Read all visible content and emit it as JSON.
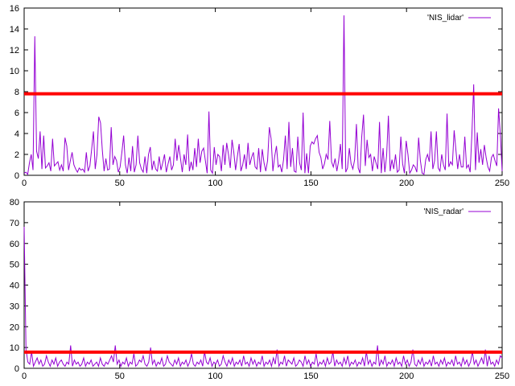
{
  "chart_data": [
    {
      "type": "line",
      "xlim": [
        0,
        250
      ],
      "ylim": [
        0,
        16
      ],
      "x_ticks": [
        "0",
        "50",
        "100",
        "150",
        "200",
        "250"
      ],
      "y_ticks": [
        "0",
        "2",
        "4",
        "6",
        "8",
        "10",
        "12",
        "14",
        "16"
      ],
      "legend_position": "top-right",
      "threshold": {
        "value": 7.8,
        "color": "#ff0000"
      },
      "series": [
        {
          "name": "'NIS_lidar'",
          "color": "#9400d3",
          "values": [
            0.2,
            0.3,
            0.1,
            1.2,
            2.0,
            0.5,
            13.3,
            2.3,
            1.6,
            4.2,
            0.6,
            3.8,
            0.7,
            0.9,
            1.2,
            0.4,
            3.5,
            0.9,
            1.1,
            1.3,
            0.5,
            1.0,
            0.4,
            3.6,
            2.8,
            0.5,
            1.4,
            2.2,
            1.0,
            0.6,
            0.3,
            0.7,
            0.5,
            0.6,
            0.3,
            2.2,
            0.4,
            0.9,
            2.5,
            4.2,
            0.6,
            2.0,
            5.6,
            5.0,
            2.4,
            0.4,
            1.6,
            0.5,
            0.6,
            4.6,
            1.0,
            1.8,
            1.4,
            0.3,
            0.8,
            2.2,
            3.8,
            1.0,
            0.2,
            1.7,
            0.4,
            2.8,
            0.3,
            1.0,
            3.8,
            1.2,
            0.6,
            0.3,
            1.8,
            0.2,
            2.0,
            2.7,
            0.5,
            1.4,
            0.6,
            0.4,
            1.8,
            0.5,
            1.2,
            2.0,
            0.3,
            1.1,
            1.8,
            0.5,
            1.0,
            3.5,
            1.4,
            2.9,
            1.6,
            0.3,
            2.0,
            1.0,
            3.9,
            0.4,
            1.3,
            0.5,
            2.6,
            0.8,
            3.5,
            1.2,
            2.3,
            2.6,
            1.4,
            0.2,
            6.1,
            0.5,
            0.2,
            2.7,
            1.0,
            2.0,
            1.8,
            0.4,
            2.9,
            1.0,
            3.1,
            2.0,
            0.7,
            3.4,
            2.2,
            0.5,
            1.8,
            3.0,
            0.4,
            1.0,
            2.0,
            0.6,
            3.1,
            1.0,
            1.7,
            2.2,
            0.8,
            0.6,
            2.6,
            0.3,
            2.5,
            1.2,
            0.4,
            1.4,
            4.6,
            3.5,
            0.4,
            1.8,
            2.8,
            0.8,
            1.0,
            0.3,
            1.5,
            3.8,
            0.6,
            5.1,
            0.8,
            2.6,
            0.4,
            0.3,
            3.7,
            1.2,
            0.5,
            6.0,
            0.2,
            2.1,
            0.2,
            2.8,
            3.2,
            3.0,
            3.5,
            3.8,
            2.2,
            1.7,
            0.6,
            1.1,
            2.0,
            1.5,
            5.2,
            1.3,
            0.8,
            1.6,
            0.4,
            1.4,
            3.0,
            0.6,
            15.3,
            0.3,
            0.7,
            2.6,
            1.1,
            0.6,
            1.5,
            4.9,
            0.7,
            0.2,
            3.7,
            5.8,
            0.9,
            3.4,
            1.7,
            2.0,
            0.4,
            1.8,
            1.2,
            0.6,
            5.1,
            0.2,
            2.6,
            0.3,
            1.9,
            5.7,
            0.4,
            1.5,
            0.6,
            2.0,
            0.3,
            0.5,
            3.7,
            1.1,
            0.2,
            3.3,
            2.0,
            0.2,
            0.5,
            1.0,
            0.8,
            0.3,
            3.6,
            1.4,
            0.2,
            0.1,
            1.5,
            2.0,
            1.3,
            4.2,
            0.6,
            1.4,
            4.2,
            0.7,
            0.4,
            2.0,
            1.0,
            0.5,
            5.9,
            0.8,
            1.3,
            1.0,
            4.3,
            2.4,
            0.6,
            2.0,
            0.8,
            0.8,
            3.7,
            0.7,
            1.0,
            0.3,
            4.0,
            8.7,
            0.5,
            4.1,
            1.2,
            2.5,
            1.0,
            2.9,
            1.7,
            0.8,
            0.4,
            1.7,
            2.0,
            1.4,
            0.9,
            6.4,
            3.9,
            0.4
          ]
        }
      ]
    },
    {
      "type": "line",
      "xlim": [
        0,
        250
      ],
      "ylim": [
        0,
        80
      ],
      "x_ticks": [
        "0",
        "50",
        "100",
        "150",
        "200",
        "250"
      ],
      "y_ticks": [
        "0",
        "10",
        "20",
        "30",
        "40",
        "50",
        "60",
        "70",
        "80"
      ],
      "legend_position": "top-right",
      "threshold": {
        "value": 7.8,
        "color": "#ff0000"
      },
      "series": [
        {
          "name": "'NIS_radar'",
          "color": "#9400d3",
          "values": [
            68,
            9,
            3,
            2,
            8,
            1,
            3,
            5,
            2,
            4,
            1,
            2,
            6,
            3,
            1,
            4,
            2,
            5,
            1,
            3,
            4,
            2,
            1,
            3,
            2,
            11,
            1,
            4,
            2,
            3,
            1,
            2,
            5,
            1,
            3,
            2,
            4,
            1,
            2,
            3,
            1,
            5,
            2,
            1,
            3,
            2,
            4,
            6,
            3,
            11,
            2,
            4,
            1,
            3,
            2,
            5,
            1,
            3,
            2,
            7,
            1,
            2,
            4,
            3,
            6,
            2,
            1,
            3,
            10,
            2,
            4,
            1,
            3,
            2,
            5,
            1,
            2,
            6,
            3,
            2,
            1,
            4,
            2,
            5,
            1,
            3,
            2,
            4,
            1,
            3,
            7,
            2,
            1,
            3,
            2,
            4,
            1,
            8,
            3,
            2,
            5,
            1,
            3,
            2,
            4,
            1,
            2,
            6,
            3,
            1,
            4,
            2,
            5,
            1,
            3,
            2,
            4,
            1,
            6,
            2,
            3,
            1,
            5,
            2,
            4,
            1,
            3,
            2,
            6,
            1,
            3,
            2,
            4,
            1,
            5,
            2,
            9,
            1,
            3,
            2,
            6,
            1,
            4,
            3,
            2,
            5,
            1,
            2,
            4,
            3,
            1,
            6,
            2,
            4,
            1,
            3,
            2,
            7,
            1,
            3,
            2,
            4,
            1,
            5,
            2,
            3,
            8,
            1,
            4,
            2,
            3,
            1,
            5,
            2,
            6,
            1,
            3,
            2,
            4,
            1,
            3,
            2,
            5,
            1,
            8,
            2,
            4,
            1,
            3,
            2,
            11,
            1,
            4,
            2,
            6,
            1,
            3,
            2,
            4,
            1,
            5,
            2,
            3,
            1,
            6,
            2,
            4,
            1,
            3,
            9,
            2,
            1,
            4,
            2,
            5,
            1,
            3,
            2,
            4,
            1,
            6,
            2,
            3,
            1,
            4,
            2,
            5,
            1,
            3,
            2,
            4,
            1,
            6,
            2,
            3,
            1,
            5,
            2,
            4,
            1,
            3,
            8,
            2,
            4,
            1,
            3,
            5,
            2,
            9,
            1,
            6,
            2,
            3,
            1,
            4,
            2,
            6,
            5
          ]
        }
      ]
    }
  ]
}
